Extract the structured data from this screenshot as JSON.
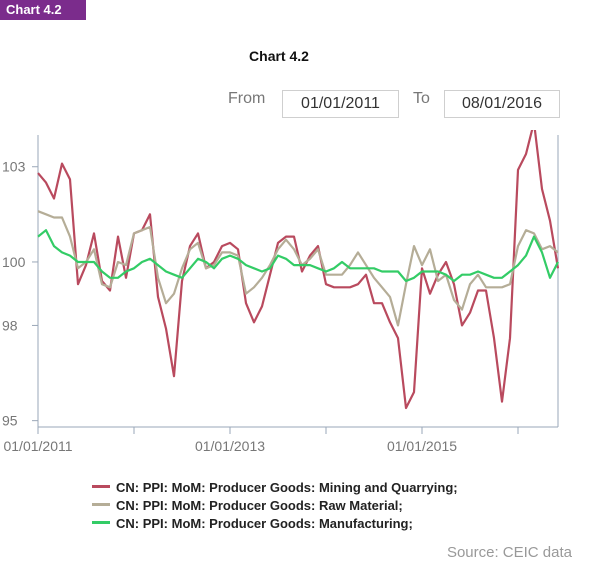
{
  "badge": "Chart 4.2",
  "range": {
    "from_label": "From",
    "from_value": "01/01/2011",
    "to_label": "To",
    "to_value": "08/01/2016"
  },
  "source": "Source: CEIC data",
  "chart_data": {
    "type": "line",
    "title": "Chart 4.2",
    "xlabel": "",
    "ylabel": "",
    "x_start": "2011-01",
    "x_end": "2016-08",
    "x_tick_labels": [
      "01/01/2011",
      "01/01/2013",
      "01/01/2015"
    ],
    "y_ticks": [
      95,
      98,
      100,
      103
    ],
    "ylim": [
      94.8,
      104
    ],
    "grid": false,
    "legend_position": "bottom",
    "colors": {
      "mining": "#b94a5e",
      "raw": "#b5ad97",
      "manufacturing": "#33cc66"
    },
    "series": [
      {
        "key": "mining",
        "name": "CN: PPI: MoM: Producer Goods: Mining and Quarrying;",
        "values": [
          102.8,
          102.5,
          102.0,
          103.1,
          102.6,
          99.3,
          99.9,
          100.9,
          99.4,
          99.1,
          100.8,
          99.5,
          100.9,
          101.0,
          101.5,
          98.9,
          97.9,
          96.4,
          99.4,
          100.5,
          100.9,
          99.8,
          100.0,
          100.5,
          100.6,
          100.4,
          98.7,
          98.1,
          98.6,
          99.6,
          100.6,
          100.8,
          100.8,
          99.7,
          100.2,
          100.5,
          99.3,
          99.2,
          99.2,
          99.2,
          99.3,
          99.6,
          98.7,
          98.7,
          98.1,
          97.6,
          95.4,
          95.9,
          99.8,
          99.0,
          99.6,
          100.0,
          99.3,
          98.0,
          98.4,
          99.1,
          99.1,
          97.6,
          95.6,
          97.6,
          102.9,
          103.4,
          104.4,
          102.3,
          101.3,
          99.8
        ]
      },
      {
        "key": "raw",
        "name": "CN: PPI: MoM: Producer Goods: Raw Material;",
        "values": [
          101.6,
          101.5,
          101.4,
          101.4,
          100.8,
          99.8,
          100.0,
          100.4,
          99.3,
          99.2,
          100.0,
          99.9,
          100.9,
          101.0,
          101.1,
          99.5,
          98.7,
          99.0,
          99.8,
          100.4,
          100.6,
          99.8,
          99.9,
          100.3,
          100.3,
          100.2,
          99.0,
          99.2,
          99.5,
          99.9,
          100.4,
          100.7,
          100.4,
          99.9,
          100.1,
          100.4,
          99.6,
          99.6,
          99.6,
          99.9,
          100.3,
          99.9,
          99.5,
          99.2,
          98.9,
          98.0,
          99.3,
          100.5,
          99.9,
          100.4,
          99.4,
          99.6,
          98.8,
          98.5,
          99.3,
          99.6,
          99.2,
          99.2,
          99.2,
          99.3,
          100.5,
          101.0,
          100.9,
          100.4,
          100.5,
          100.3
        ]
      },
      {
        "key": "manufacturing",
        "name": "CN: PPI: MoM: Producer Goods: Manufacturing;",
        "values": [
          100.8,
          101.0,
          100.5,
          100.3,
          100.2,
          100.0,
          100.0,
          100.0,
          99.7,
          99.5,
          99.5,
          99.7,
          99.8,
          100.0,
          100.1,
          99.9,
          99.7,
          99.6,
          99.5,
          99.8,
          100.1,
          100.0,
          99.8,
          100.1,
          100.2,
          100.1,
          99.9,
          99.8,
          99.7,
          99.8,
          100.2,
          100.1,
          99.9,
          99.9,
          99.9,
          99.8,
          99.7,
          99.8,
          100.0,
          99.8,
          99.8,
          99.8,
          99.8,
          99.7,
          99.7,
          99.7,
          99.4,
          99.5,
          99.7,
          99.7,
          99.7,
          99.6,
          99.4,
          99.6,
          99.6,
          99.7,
          99.6,
          99.5,
          99.5,
          99.7,
          99.9,
          100.2,
          100.8,
          100.3,
          99.5,
          100.0
        ]
      }
    ]
  }
}
